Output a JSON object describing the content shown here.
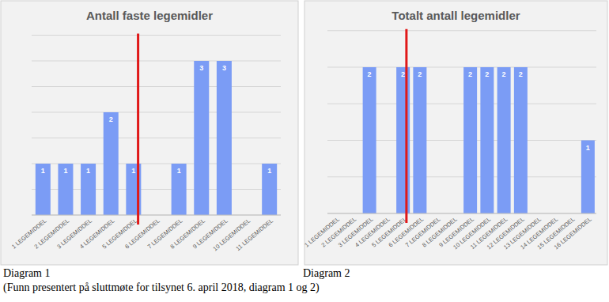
{
  "chart_data": [
    {
      "type": "bar",
      "title": "Antall faste legemidler",
      "categories": [
        "1 LEGEMIDDEL",
        "2 LEGEMIDDEL",
        "3 LEGEMIDDEL",
        "4 LEGEMIDDEL",
        "5 LEGEMIDDEL",
        "6 LEGEMIDDEL",
        "7 LEGEMIDDEL",
        "8 LEGEMIDDEL",
        "9 LEGEMIDDEL",
        "10 LEGEMIDDEL",
        "11 LEGEMIDDEL"
      ],
      "values": [
        1,
        1,
        1,
        2,
        1,
        null,
        1,
        3,
        3,
        null,
        1
      ],
      "color": "#7b9cf5",
      "ylim": [
        0,
        3.5
      ],
      "yticks": [
        0,
        0.5,
        1,
        1.5,
        2,
        2.5,
        3,
        3.5
      ],
      "grid": true,
      "data_labels": true,
      "tick_labels": "x",
      "reference_line": {
        "x": 5.2,
        "color": "#e01818"
      }
    },
    {
      "type": "bar",
      "title": "Totalt antall legemidler",
      "categories": [
        "1 LEGEMIDDEL",
        "2 LEGEMIDDEL",
        "3 LEGEMIDDEL",
        "4 LEGEMIDDEL",
        "5 LEGEMIDDEL",
        "6 LEGEMIDDEL",
        "7 LEGEMIDDEL",
        "8 LEGEMIDDEL",
        "9 LEGEMIDDEL",
        "10 LEGEMIDDEL",
        "11 LEGEMIDDEL",
        "12 LEGEMIDDEL",
        "13 LEGEMIDDEL",
        "14 LEGEMIDDEL",
        "15 LEGEMIDDEL",
        "16 LEGEMIDDEL"
      ],
      "values": [
        null,
        null,
        2,
        null,
        2,
        2,
        null,
        null,
        2,
        2,
        2,
        2,
        null,
        null,
        null,
        1
      ],
      "color": "#7b9cf5",
      "ylim": [
        0,
        2.5
      ],
      "yticks": [
        0,
        0.5,
        1,
        1.5,
        2,
        2.5
      ],
      "grid": true,
      "data_labels": true,
      "tick_labels": "x",
      "reference_line": {
        "x": 5.2,
        "color": "#e01818"
      }
    }
  ],
  "captions": [
    "Diagram 1",
    "Diagram 2"
  ],
  "note": "(Funn presentert på sluttmøte for tilsynet 6. april 2018, diagram 1 og 2)"
}
